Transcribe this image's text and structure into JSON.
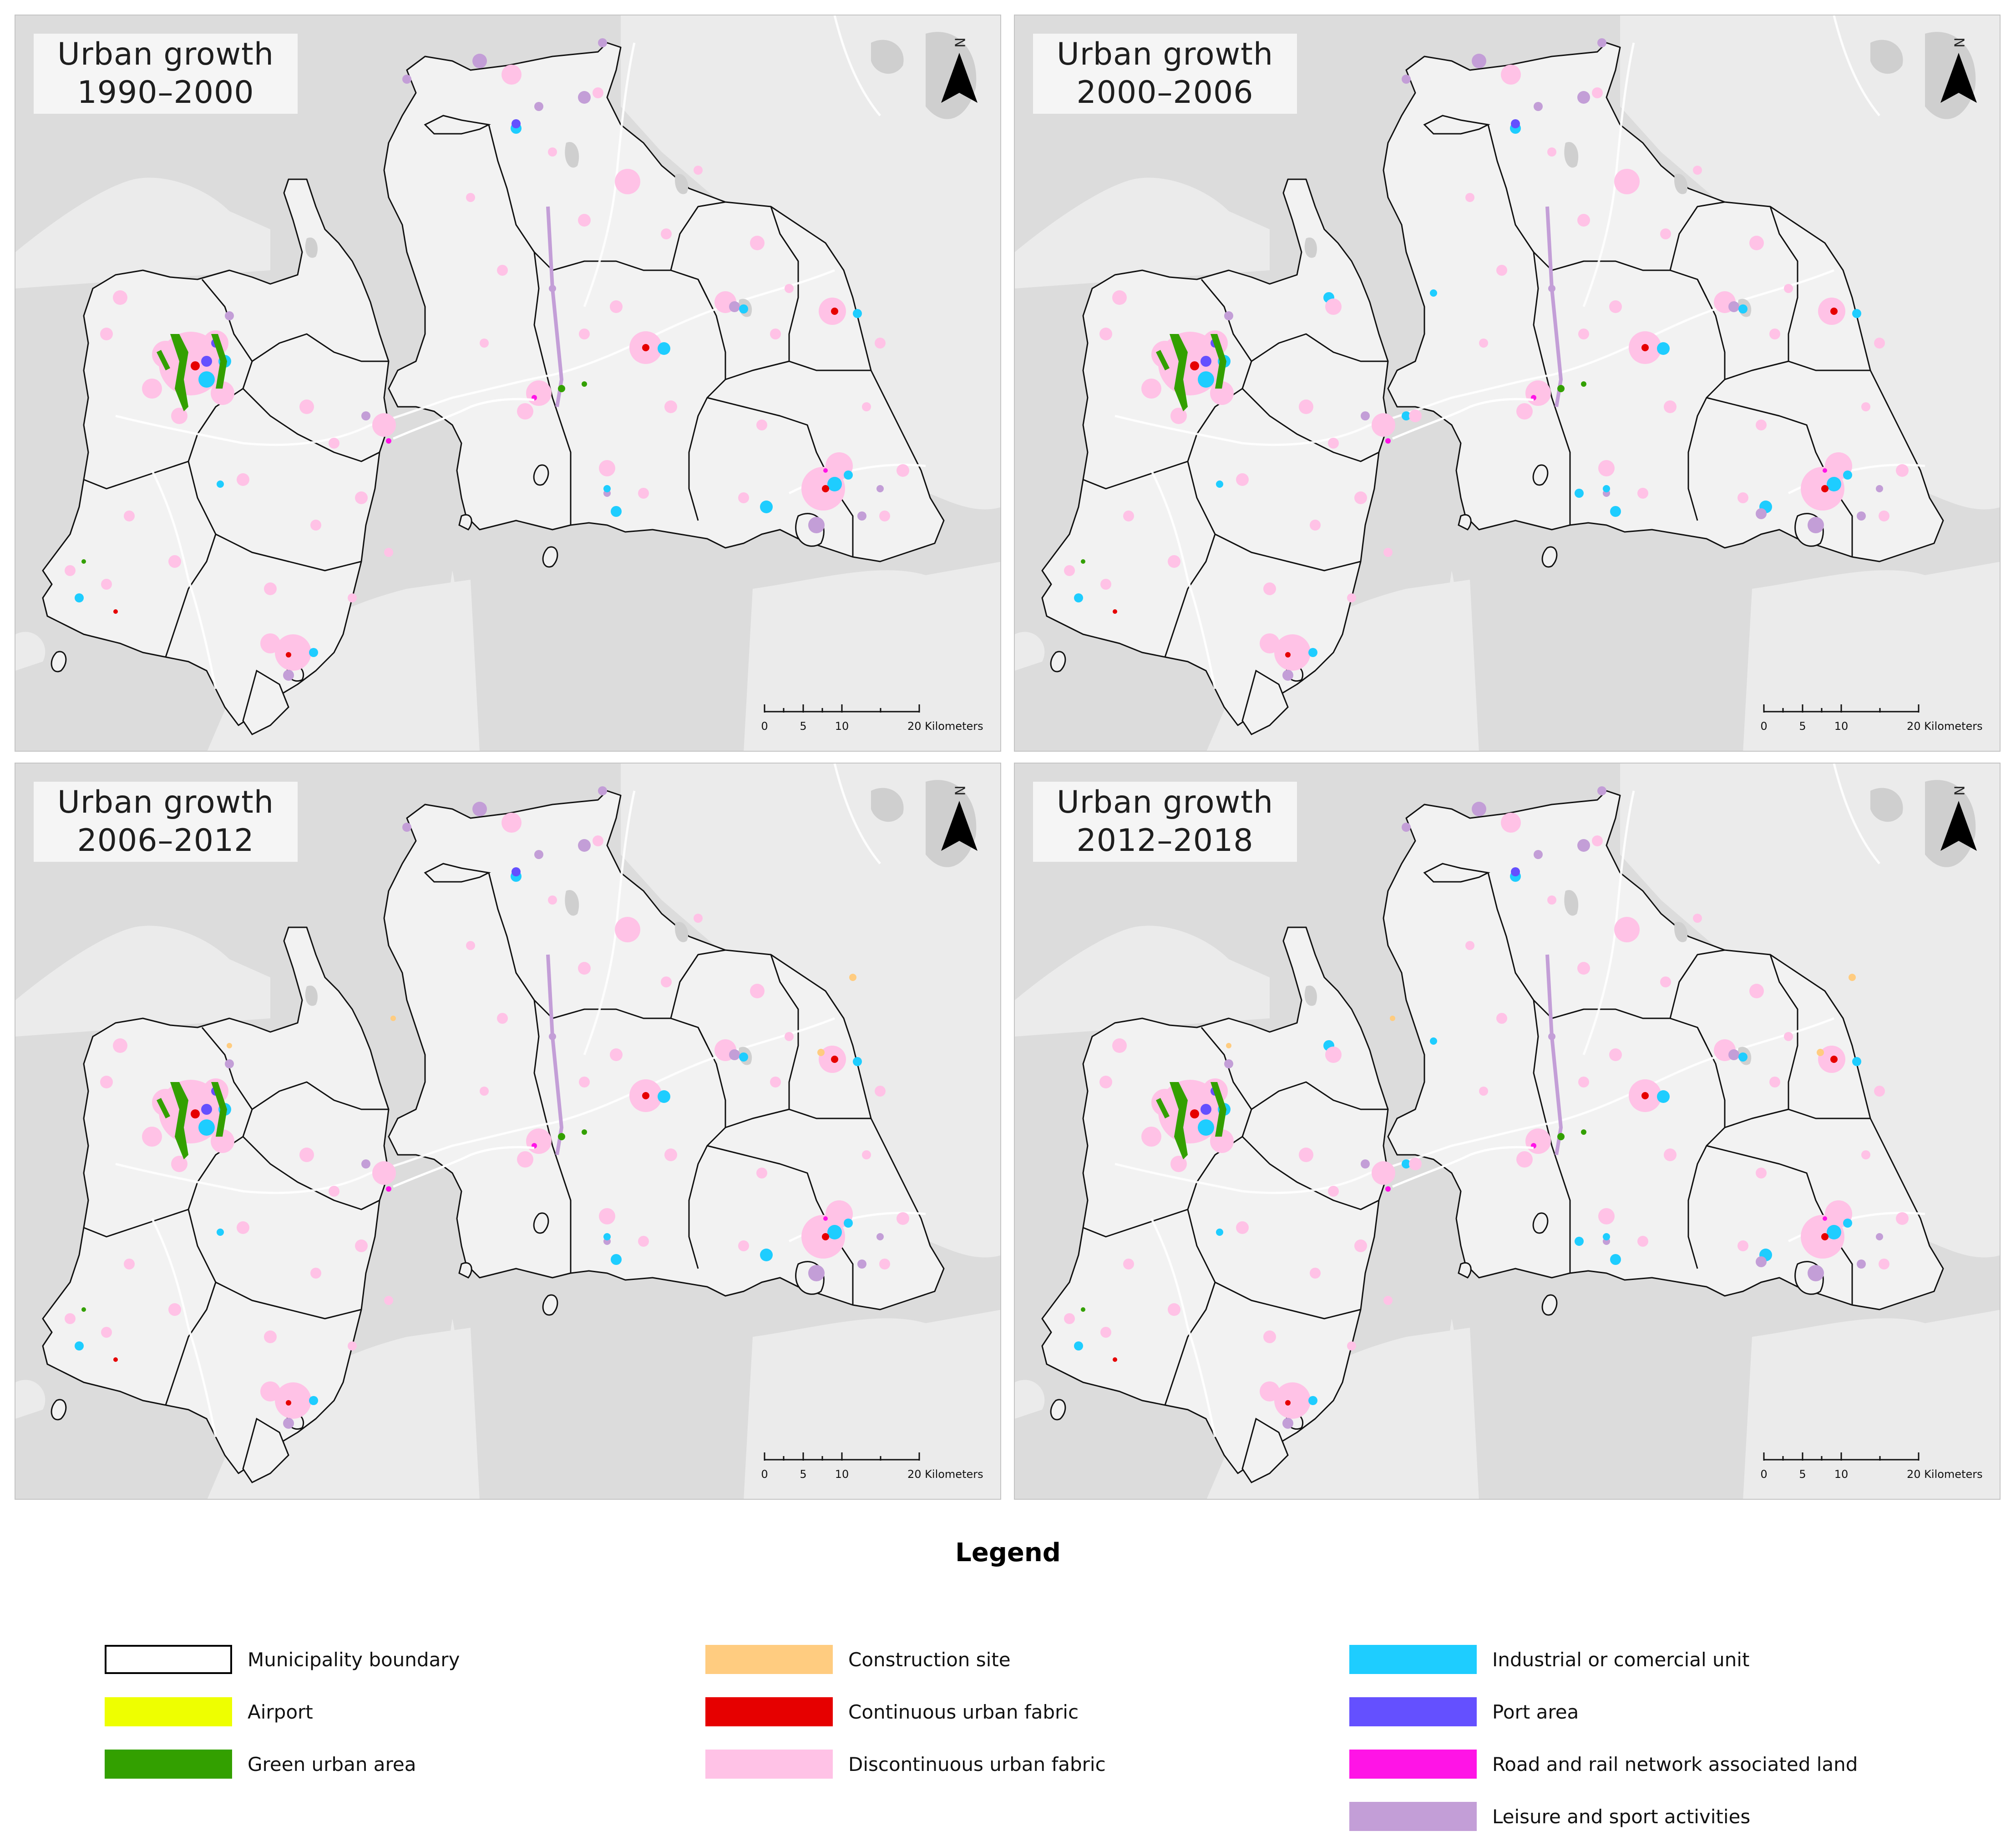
{
  "panels": [
    {
      "title_line1": "Urban growth",
      "title_line2": "1990–2000",
      "north": "N"
    },
    {
      "title_line1": "Urban growth",
      "title_line2": "2000–2006",
      "north": "N"
    },
    {
      "title_line1": "Urban growth",
      "title_line2": "2006–2012",
      "north": "N"
    },
    {
      "title_line1": "Urban growth",
      "title_line2": "2012–2018",
      "north": "N"
    }
  ],
  "scale": {
    "ticks": [
      "0",
      "5",
      "10",
      "20 Kilometers"
    ]
  },
  "legend": {
    "title": "Legend",
    "items": [
      {
        "label": "Municipality boundary",
        "color": "#ffffff"
      },
      {
        "label": "Airport",
        "color": "#eeff00"
      },
      {
        "label": "Green urban area",
        "color": "#33a000"
      },
      {
        "label": "Construction site",
        "color": "#ffcc80"
      },
      {
        "label": "Continuous urban fabric",
        "color": "#e60000"
      },
      {
        "label": "Discontinuous urban fabric",
        "color": "#ffc2e6"
      },
      {
        "label": "Industrial or comercial unit",
        "color": "#1ecdff"
      },
      {
        "label": "Port area",
        "color": "#6450ff"
      },
      {
        "label": "Road and rail network associated land",
        "color": "#ff14e6"
      },
      {
        "label": "Leisure and sport activities",
        "color": "#c39ed7"
      }
    ]
  },
  "colors": {
    "sea": "#dcdcdc",
    "land": "#ebebeb",
    "study_area": "#f2f2f2",
    "boundary": "#111111",
    "road": "#ffffff"
  }
}
